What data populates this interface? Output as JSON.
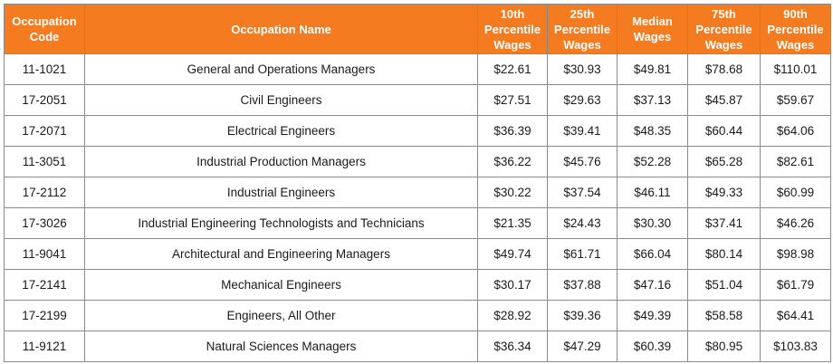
{
  "header": {
    "code": [
      "Occupation",
      "Code"
    ],
    "name": [
      "Occupation Name"
    ],
    "p10": [
      "10th",
      "Percentile",
      "Wages"
    ],
    "p25": [
      "25th",
      "Percentile",
      "Wages"
    ],
    "median": [
      "Median",
      "Wages"
    ],
    "p75": [
      "75th",
      "Percentile",
      "Wages"
    ],
    "p90": [
      "90th",
      "Percentile",
      "Wages"
    ]
  },
  "rows": [
    {
      "code": "11-1021",
      "name": "General and Operations Managers",
      "p10": "$22.61",
      "p25": "$30.93",
      "median": "$49.81",
      "p75": "$78.68",
      "p90": "$110.01"
    },
    {
      "code": "17-2051",
      "name": "Civil Engineers",
      "p10": "$27.51",
      "p25": "$29.63",
      "median": "$37.13",
      "p75": "$45.87",
      "p90": "$59.67"
    },
    {
      "code": "17-2071",
      "name": "Electrical Engineers",
      "p10": "$36.39",
      "p25": "$39.41",
      "median": "$48.35",
      "p75": "$60.44",
      "p90": "$64.06"
    },
    {
      "code": "11-3051",
      "name": "Industrial Production Managers",
      "p10": "$36.22",
      "p25": "$45.76",
      "median": "$52.28",
      "p75": "$65.28",
      "p90": "$82.61"
    },
    {
      "code": "17-2112",
      "name": "Industrial Engineers",
      "p10": "$30.22",
      "p25": "$37.54",
      "median": "$46.11",
      "p75": "$49.33",
      "p90": "$60.99"
    },
    {
      "code": "17-3026",
      "name": "Industrial Engineering Technologists and Technicians",
      "p10": "$21.35",
      "p25": "$24.43",
      "median": "$30.30",
      "p75": "$37.41",
      "p90": "$46.26"
    },
    {
      "code": "11-9041",
      "name": "Architectural and Engineering Managers",
      "p10": "$49.74",
      "p25": "$61.71",
      "median": "$66.04",
      "p75": "$80.14",
      "p90": "$98.98"
    },
    {
      "code": "17-2141",
      "name": "Mechanical Engineers",
      "p10": "$30.17",
      "p25": "$37.88",
      "median": "$47.16",
      "p75": "$51.04",
      "p90": "$61.79"
    },
    {
      "code": "17-2199",
      "name": "Engineers, All Other",
      "p10": "$28.92",
      "p25": "$39.36",
      "median": "$49.39",
      "p75": "$58.58",
      "p90": "$64.41"
    },
    {
      "code": "11-9121",
      "name": "Natural Sciences Managers",
      "p10": "$36.34",
      "p25": "$47.29",
      "median": "$60.39",
      "p75": "$80.95",
      "p90": "$103.83"
    }
  ],
  "colors": {
    "header_bg": "#f47b20",
    "header_text": "#ffffff",
    "border": "#8a8a8a"
  }
}
